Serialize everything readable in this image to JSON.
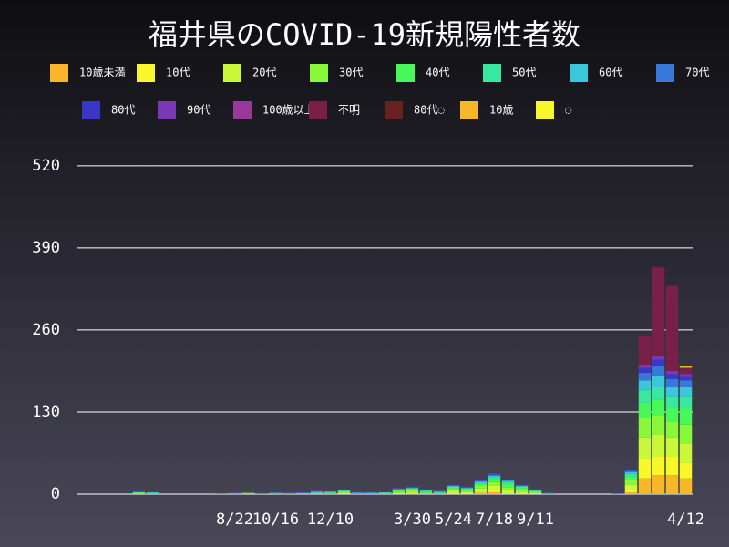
{
  "chart_data": {
    "type": "bar",
    "stacked": true,
    "title": "福井県のCOVID-19新規陽性者数",
    "categories": [
      null,
      null,
      null,
      null,
      null,
      null,
      null,
      null,
      null,
      null,
      null,
      "8/22",
      null,
      null,
      "10/16",
      null,
      null,
      null,
      "12/10",
      null,
      null,
      null,
      null,
      null,
      "3/30",
      null,
      null,
      "5/24",
      null,
      null,
      "7/18",
      null,
      null,
      "9/11",
      null,
      null,
      null,
      null,
      null,
      null,
      null,
      null,
      null,
      null,
      "4/12"
    ],
    "ylim": [
      0,
      566
    ],
    "yticks": [
      0,
      130,
      260,
      390,
      520
    ],
    "grid": true,
    "series": [
      {
        "name": "10歳未満",
        "color": "#f8b628",
        "values": [
          0,
          0,
          0,
          0,
          0,
          0,
          0,
          0,
          0,
          0,
          0,
          0,
          0,
          0,
          0,
          0,
          0,
          0,
          0,
          0,
          0,
          0,
          0,
          0,
          0,
          0,
          0,
          0,
          0,
          2,
          3,
          0,
          0,
          0,
          0,
          0,
          0,
          0,
          0,
          0,
          3,
          25,
          30,
          30,
          25
        ]
      },
      {
        "name": "10代",
        "color": "#f8f828",
        "values": [
          0,
          0,
          0,
          0,
          0,
          0,
          0,
          0,
          0,
          0,
          0,
          0,
          0,
          0,
          0,
          0,
          0,
          0,
          0,
          0,
          0,
          0,
          0,
          0,
          1,
          0,
          0,
          2,
          0,
          2,
          3,
          0,
          0,
          0,
          0,
          0,
          0,
          0,
          0,
          0,
          4,
          30,
          30,
          30,
          25
        ]
      },
      {
        "name": "20代",
        "color": "#c8f838",
        "values": [
          0,
          0,
          0,
          0,
          1,
          0,
          0,
          0,
          0,
          0,
          0,
          0,
          1,
          0,
          0,
          0,
          0,
          1,
          0,
          2,
          0,
          0,
          0,
          2,
          3,
          0,
          0,
          3,
          3,
          5,
          7,
          6,
          4,
          2,
          0,
          0,
          0,
          0,
          0,
          0,
          8,
          35,
          35,
          30,
          30
        ]
      },
      {
        "name": "30代",
        "color": "#88f838",
        "values": [
          0,
          0,
          0,
          0,
          1,
          0,
          0,
          0,
          0,
          0,
          0,
          1,
          0,
          0,
          0,
          0,
          1,
          0,
          1,
          2,
          0,
          0,
          1,
          2,
          2,
          2,
          0,
          3,
          2,
          4,
          6,
          5,
          3,
          2,
          0,
          0,
          0,
          0,
          0,
          0,
          7,
          30,
          30,
          25,
          30
        ]
      },
      {
        "name": "40代",
        "color": "#48f858",
        "values": [
          0,
          0,
          0,
          0,
          1,
          0,
          0,
          0,
          0,
          0,
          0,
          0,
          1,
          0,
          0,
          1,
          0,
          1,
          1,
          1,
          0,
          1,
          1,
          2,
          2,
          2,
          2,
          2,
          2,
          3,
          5,
          5,
          3,
          1,
          0,
          0,
          0,
          0,
          0,
          0,
          6,
          25,
          25,
          22,
          25
        ]
      },
      {
        "name": "50代",
        "color": "#38e8a0",
        "values": [
          0,
          0,
          0,
          0,
          0,
          2,
          0,
          0,
          0,
          0,
          1,
          0,
          0,
          0,
          1,
          0,
          1,
          0,
          1,
          0,
          1,
          0,
          0,
          1,
          1,
          1,
          1,
          2,
          2,
          2,
          3,
          3,
          2,
          0,
          1,
          0,
          0,
          0,
          0,
          0,
          4,
          20,
          20,
          18,
          20
        ]
      },
      {
        "name": "60代",
        "color": "#38c8d8",
        "values": [
          0,
          0,
          0,
          0,
          0,
          1,
          0,
          0,
          0,
          0,
          0,
          0,
          0,
          1,
          1,
          0,
          0,
          2,
          1,
          1,
          1,
          1,
          1,
          1,
          1,
          1,
          1,
          1,
          1,
          2,
          2,
          2,
          1,
          1,
          0,
          0,
          0,
          0,
          0,
          1,
          3,
          15,
          18,
          15,
          15
        ]
      },
      {
        "name": "70代",
        "color": "#3878d8",
        "values": [
          0,
          0,
          0,
          0,
          1,
          0,
          0,
          0,
          0,
          0,
          0,
          1,
          0,
          0,
          0,
          1,
          0,
          0,
          0,
          1,
          1,
          1,
          0,
          0,
          1,
          0,
          1,
          1,
          1,
          1,
          2,
          2,
          1,
          0,
          1,
          0,
          0,
          0,
          0,
          0,
          2,
          12,
          15,
          12,
          10
        ]
      },
      {
        "name": "80代",
        "color": "#3838c8",
        "values": [
          0,
          0,
          0,
          0,
          1,
          1,
          0,
          0,
          0,
          0,
          0,
          0,
          0,
          0,
          0,
          0,
          1,
          0,
          0,
          0,
          0,
          0,
          1,
          1,
          1,
          0,
          0,
          1,
          1,
          1,
          1,
          1,
          1,
          1,
          0,
          0,
          0,
          0,
          0,
          1,
          1,
          8,
          10,
          8,
          7
        ]
      },
      {
        "name": "90代",
        "color": "#7838b8",
        "values": [
          0,
          0,
          0,
          0,
          0,
          0,
          0,
          0,
          0,
          0,
          0,
          0,
          0,
          0,
          0,
          0,
          0,
          1,
          0,
          0,
          0,
          0,
          0,
          1,
          0,
          0,
          0,
          0,
          0,
          1,
          1,
          0,
          0,
          0,
          0,
          0,
          0,
          0,
          0,
          0,
          0,
          4,
          5,
          4,
          3
        ]
      },
      {
        "name": "100歳以上",
        "color": "#983898",
        "values": [
          0,
          0,
          0,
          0,
          0,
          0,
          0,
          0,
          0,
          0,
          0,
          0,
          0,
          0,
          0,
          0,
          0,
          0,
          0,
          0,
          0,
          0,
          0,
          0,
          0,
          0,
          0,
          0,
          0,
          0,
          0,
          0,
          0,
          0,
          0,
          0,
          0,
          0,
          0,
          0,
          0,
          1,
          1,
          1,
          0
        ]
      },
      {
        "name": "不明",
        "color": "#782048",
        "values": [
          0,
          0,
          0,
          0,
          0,
          0,
          0,
          0,
          0,
          0,
          0,
          0,
          0,
          0,
          0,
          0,
          0,
          0,
          0,
          1,
          0,
          0,
          0,
          0,
          0,
          0,
          0,
          0,
          0,
          0,
          0,
          0,
          0,
          0,
          0,
          0,
          0,
          0,
          0,
          0,
          2,
          45,
          140,
          135,
          10
        ]
      },
      {
        "name": "80代◌",
        "color": "#682020",
        "values": [
          0,
          0,
          0,
          0,
          0,
          0,
          0,
          0,
          0,
          0,
          0,
          0,
          0,
          0,
          0,
          0,
          0,
          0,
          0,
          0,
          0,
          0,
          0,
          0,
          0,
          0,
          0,
          0,
          0,
          0,
          0,
          0,
          0,
          0,
          0,
          0,
          0,
          0,
          0,
          0,
          0,
          1,
          1,
          0,
          0
        ]
      },
      {
        "name": "10歳",
        "color": "#f8b628",
        "values": [
          0,
          0,
          0,
          0,
          0,
          0,
          0,
          0,
          0,
          0,
          0,
          0,
          0,
          0,
          0,
          0,
          0,
          0,
          0,
          0,
          0,
          0,
          0,
          0,
          0,
          0,
          0,
          0,
          0,
          0,
          0,
          0,
          0,
          0,
          0,
          0,
          0,
          0,
          0,
          0,
          0,
          0,
          0,
          0,
          2
        ]
      },
      {
        "name": "◌",
        "color": "#f8f828",
        "values": [
          0,
          0,
          0,
          0,
          0,
          0,
          0,
          0,
          0,
          0,
          0,
          0,
          0,
          0,
          0,
          0,
          0,
          0,
          0,
          0,
          0,
          0,
          0,
          0,
          0,
          0,
          0,
          0,
          0,
          0,
          0,
          0,
          0,
          0,
          0,
          0,
          0,
          0,
          0,
          0,
          0,
          0,
          0,
          0,
          1
        ]
      }
    ]
  }
}
